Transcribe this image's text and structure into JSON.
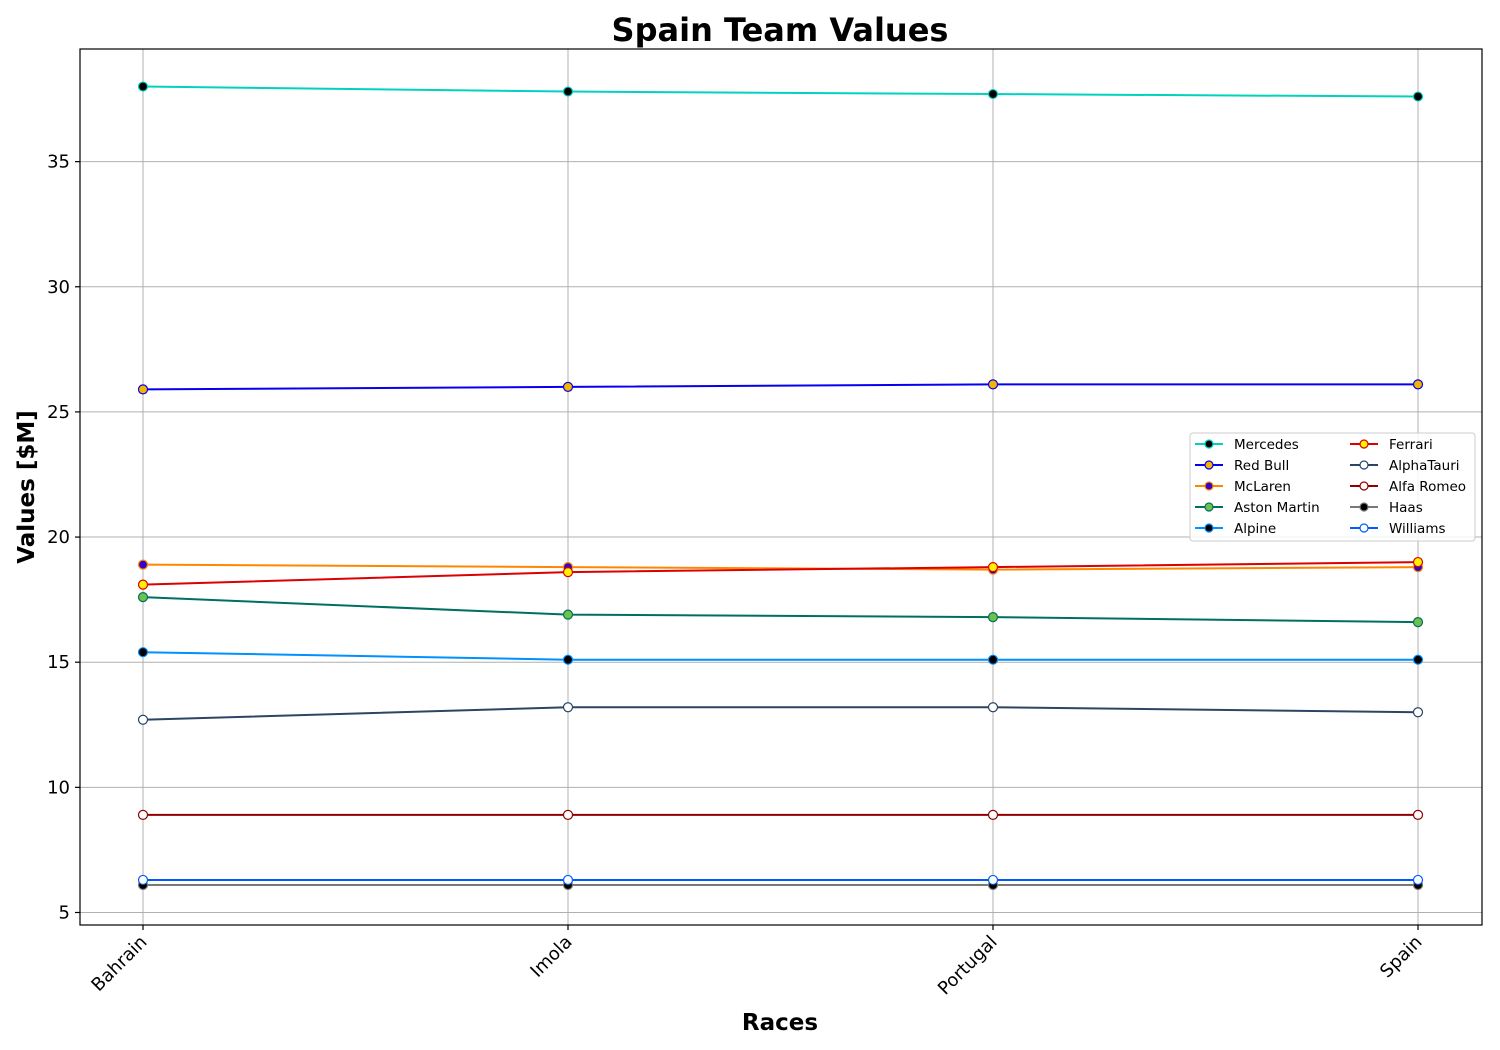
{
  "chart_data": {
    "type": "line",
    "title": "Spain Team Values",
    "xlabel": "Races",
    "ylabel": "Values [$M]",
    "categories": [
      "Bahrain",
      "Imola",
      "Portugal",
      "Spain"
    ],
    "yticks": [
      5,
      10,
      15,
      20,
      25,
      30,
      35
    ],
    "ylim": [
      4.5,
      39.5
    ],
    "grid": true,
    "legend_position": "right",
    "series": [
      {
        "name": "Mercedes",
        "color": "#00D2BE",
        "marker_face": "#000000",
        "marker_edge": "#00D2BE",
        "values": [
          38.0,
          37.8,
          37.7,
          37.6
        ]
      },
      {
        "name": "Red Bull",
        "color": "#0600EF",
        "marker_face": "#F5B400",
        "marker_edge": "#0600EF",
        "values": [
          25.9,
          26.0,
          26.1,
          26.1
        ]
      },
      {
        "name": "McLaren",
        "color": "#FF8700",
        "marker_face": "#3300CC",
        "marker_edge": "#FF8700",
        "values": [
          18.9,
          18.8,
          18.7,
          18.8
        ]
      },
      {
        "name": "Aston Martin",
        "color": "#006F62",
        "marker_face": "#6CC24A",
        "marker_edge": "#006F62",
        "values": [
          17.6,
          16.9,
          16.8,
          16.6
        ]
      },
      {
        "name": "Alpine",
        "color": "#0090FF",
        "marker_face": "#000000",
        "marker_edge": "#0090FF",
        "values": [
          15.4,
          15.1,
          15.1,
          15.1
        ]
      },
      {
        "name": "Ferrari",
        "color": "#DC0000",
        "marker_face": "#FFF200",
        "marker_edge": "#DC0000",
        "values": [
          18.1,
          18.6,
          18.8,
          19.0
        ]
      },
      {
        "name": "AlphaTauri",
        "color": "#2B4562",
        "marker_face": "#FFFFFF",
        "marker_edge": "#2B4562",
        "values": [
          12.7,
          13.2,
          13.2,
          13.0
        ]
      },
      {
        "name": "Alfa Romeo",
        "color": "#900000",
        "marker_face": "#FFFFFF",
        "marker_edge": "#900000",
        "values": [
          8.9,
          8.9,
          8.9,
          8.9
        ]
      },
      {
        "name": "Haas",
        "color": "#787878",
        "marker_face": "#000000",
        "marker_edge": "#787878",
        "values": [
          6.1,
          6.1,
          6.1,
          6.1
        ]
      },
      {
        "name": "Williams",
        "color": "#005AFF",
        "marker_face": "#FFFFFF",
        "marker_edge": "#005AFF",
        "values": [
          6.3,
          6.3,
          6.3,
          6.3
        ]
      }
    ]
  }
}
